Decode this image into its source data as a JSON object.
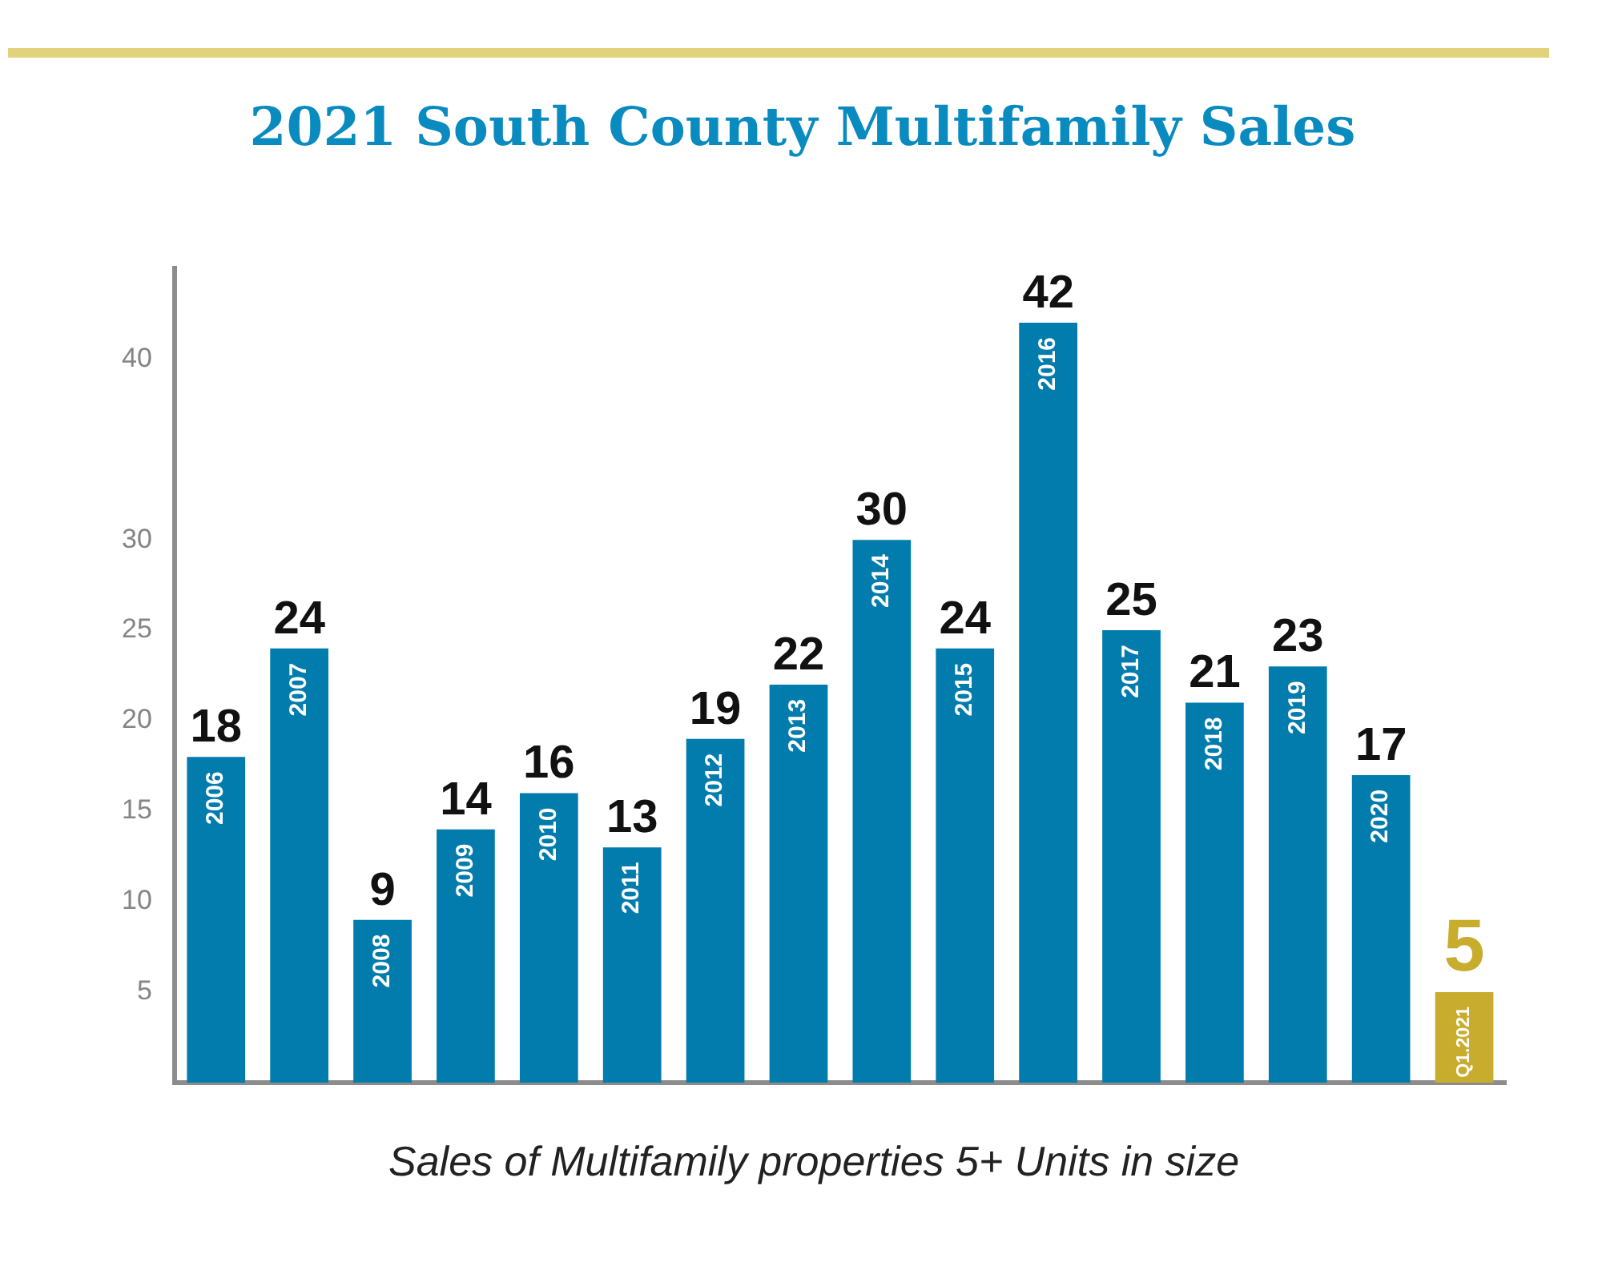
{
  "chart_data": {
    "type": "bar",
    "title": "2021 South County Multifamily Sales",
    "categories": [
      "2006",
      "2007",
      "2008",
      "2009",
      "2010",
      "2011",
      "2012",
      "2013",
      "2014",
      "2015",
      "2016",
      "2017",
      "2018",
      "2019",
      "2020",
      "Q1.2021"
    ],
    "values": [
      18,
      24,
      9,
      14,
      16,
      13,
      19,
      22,
      30,
      24,
      42,
      25,
      21,
      23,
      17,
      5
    ],
    "colors": [
      "#027bad",
      "#027bad",
      "#027bad",
      "#027bad",
      "#027bad",
      "#027bad",
      "#027bad",
      "#027bad",
      "#027bad",
      "#027bad",
      "#027bad",
      "#027bad",
      "#027bad",
      "#027bad",
      "#027bad",
      "#c8ac2e"
    ],
    "ylim": [
      0,
      45
    ],
    "yticks": [
      5,
      10,
      15,
      20,
      25,
      30,
      40
    ],
    "data_labels": true,
    "annotations": [
      "Sales of Multifamily properties 5+ Units in size"
    ]
  }
}
